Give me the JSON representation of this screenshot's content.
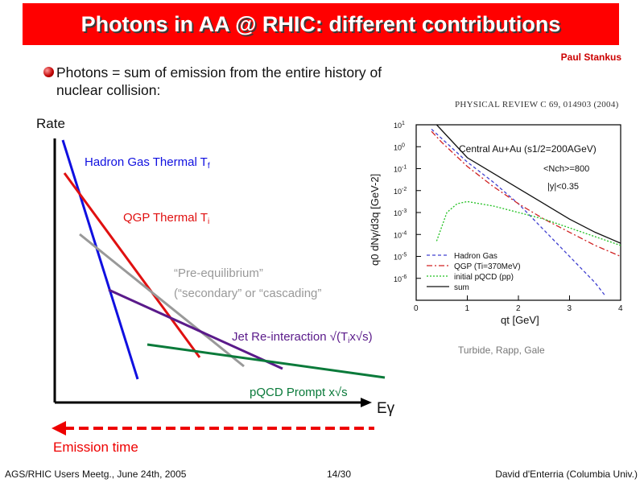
{
  "slide": {
    "title": "Photons in AA @ RHIC: different contributions",
    "author": "Paul Stankus",
    "bullet_line1": "Photons = sum of emission from the entire history of",
    "bullet_line2": "nuclear collision:",
    "reference": "PHYSICAL REVIEW C 69, 014903 (2004)",
    "credit": "Turbide, Rapp, Gale",
    "footer_left": "AGS/RHIC Users Meetg., June 24th, 2005",
    "footer_page": "14/30",
    "footer_right": "David d'Enterria (Columbia Univ.)"
  },
  "sketch": {
    "y_axis_label": "Rate",
    "x_axis_label": "Eγ",
    "emission_time_label": "Emission time",
    "hadron_gas": {
      "label": "Hadron Gas Thermal T",
      "sub": "f",
      "color": "#1010e0"
    },
    "qgp": {
      "label": "QGP Thermal T",
      "sub": "i",
      "color": "#e01010"
    },
    "pre_eq": {
      "line1": "“Pre-equilibrium”",
      "line2": "(“secondary” or “cascading”",
      "color": "#999999"
    },
    "jet": {
      "label": "Jet Re-interaction √(T",
      "sub": "i",
      "label_end": "x√s)",
      "color": "#5a1a8a"
    },
    "pqcd": {
      "label": "pQCD Prompt x√s",
      "color": "#0a7a3a"
    }
  },
  "chart_data": {
    "type": "line",
    "title": "Central Au+Au (s1/2=200AGeV)",
    "notes": [
      "<Nch>=800",
      "|y|<0.35"
    ],
    "xlabel": "qt [GeV]",
    "ylabel": "q0 dNγ/d3q [GeV-2]",
    "xlim": [
      0,
      4
    ],
    "ylim_log10": [
      -7,
      1
    ],
    "x_ticks": [
      "0",
      "1",
      "2",
      "3",
      "4"
    ],
    "y_ticks": [
      "10^1",
      "10^0",
      "10^-1",
      "10^-2",
      "10^-3",
      "10^-4",
      "10^-5",
      "10^-6"
    ],
    "series": [
      {
        "name": "Hadron Gas",
        "color": "#4040d0",
        "dash": "4,3",
        "x": [
          0.3,
          1.0,
          1.5,
          2.0,
          2.5,
          3.0,
          3.5,
          3.7
        ],
        "log10_y": [
          0.8,
          -0.7,
          -1.6,
          -2.6,
          -3.8,
          -5.0,
          -6.2,
          -6.8
        ]
      },
      {
        "name": "QGP (Ti=370MeV)",
        "color": "#d02020",
        "dash": "7,3,2,3",
        "x": [
          0.3,
          0.5,
          1.0,
          1.5,
          2.0,
          2.5,
          3.0,
          3.5,
          4.0
        ],
        "log10_y": [
          0.7,
          0.2,
          -0.9,
          -1.8,
          -2.6,
          -3.3,
          -3.9,
          -4.5,
          -5.0
        ]
      },
      {
        "name": "initial pQCD (pp)",
        "color": "#20c020",
        "dash": "2,2",
        "x": [
          0.4,
          0.6,
          0.8,
          1.0,
          1.5,
          2.0,
          2.5,
          3.0,
          3.5,
          4.0
        ],
        "log10_y": [
          -4.3,
          -3.0,
          -2.6,
          -2.5,
          -2.7,
          -3.0,
          -3.3,
          -3.7,
          -4.1,
          -4.5
        ]
      },
      {
        "name": "sum",
        "color": "#111111",
        "dash": "",
        "x": [
          0.4,
          0.6,
          1.0,
          1.5,
          2.0,
          2.5,
          3.0,
          3.5,
          4.0
        ],
        "log10_y": [
          1.0,
          0.5,
          -0.5,
          -1.2,
          -1.9,
          -2.6,
          -3.3,
          -3.9,
          -4.4
        ]
      }
    ]
  }
}
